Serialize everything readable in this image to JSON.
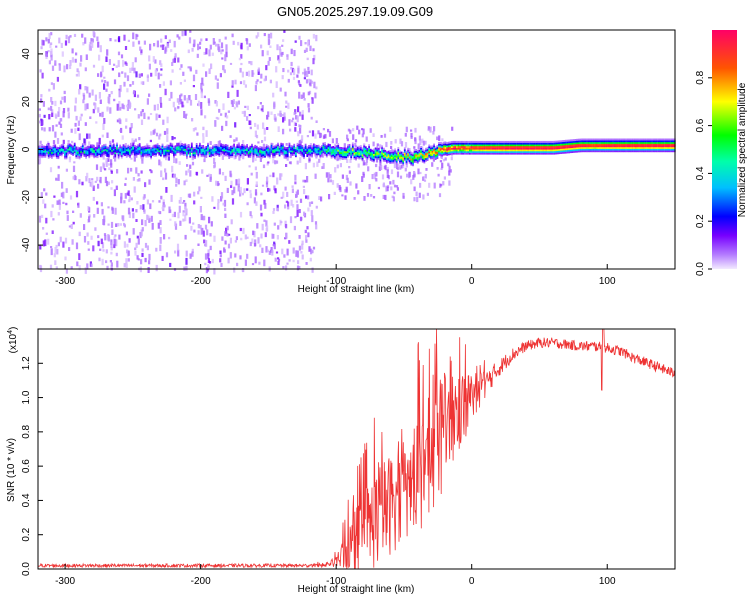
{
  "chart_data": [
    {
      "type": "heatmap",
      "title": "GN05.2025.297.19.09.G09",
      "xlabel": "Height of straight line (km)",
      "ylabel": "Frequency (Hz)",
      "xlim": [
        -320,
        150
      ],
      "ylim": [
        -50,
        50
      ],
      "xticks": [
        -300,
        -200,
        -100,
        0,
        100
      ],
      "yticks": [
        -40,
        -20,
        0,
        20,
        40
      ],
      "colorbar": {
        "label": "Normalized spectral amplitude",
        "range": [
          0,
          1
        ],
        "ticks": [
          "0.0",
          "0.2",
          "0.4",
          "0.6",
          "0.8"
        ]
      },
      "description_points": {
        "height_km": [
          -320,
          -115,
          -100,
          -80,
          -60,
          -45,
          -30,
          -15,
          0,
          20,
          40,
          60,
          80,
          90,
          100,
          150
        ],
        "peak_frequency_hz": [
          0,
          0,
          0,
          -1,
          -2,
          -3,
          -1,
          1,
          1,
          1,
          1,
          1,
          2,
          2,
          2,
          2
        ],
        "peak_amplitude": [
          0.3,
          0.3,
          0.45,
          0.5,
          0.55,
          0.6,
          0.75,
          0.85,
          0.9,
          0.95,
          0.95,
          0.95,
          0.95,
          0.9,
          0.95,
          0.95
        ]
      }
    },
    {
      "type": "line",
      "xlabel": "Height of straight line (km)",
      "ylabel": "SNR (10 * v/v)",
      "scale_label": "(x10",
      "scale_exponent": "4",
      "xlim": [
        -320,
        150
      ],
      "ylim": [
        0,
        1.4
      ],
      "xticks": [
        -300,
        -200,
        -100,
        0,
        100
      ],
      "yticks": [
        "0.0",
        "0.2",
        "0.4",
        "0.6",
        "0.8",
        "1.0",
        "1.2"
      ],
      "series": [
        {
          "color": "#ee3333",
          "x": [
            -320,
            -280,
            -240,
            -200,
            -160,
            -150,
            -130,
            -110,
            -100,
            -90,
            -80,
            -70,
            -60,
            -50,
            -40,
            -30,
            -20,
            -10,
            0,
            10,
            20,
            30,
            40,
            50,
            60,
            70,
            80,
            90,
            100,
            110,
            120,
            130,
            140,
            150
          ],
          "y": [
            0.02,
            0.02,
            0.02,
            0.02,
            0.02,
            0.02,
            0.02,
            0.02,
            0.04,
            0.12,
            0.22,
            0.3,
            0.38,
            0.45,
            0.55,
            0.68,
            0.8,
            0.92,
            1.0,
            1.08,
            1.17,
            1.25,
            1.3,
            1.32,
            1.32,
            1.31,
            1.3,
            1.3,
            1.29,
            1.27,
            1.23,
            1.2,
            1.17,
            1.14
          ],
          "noise_amplitude": [
            0.01,
            0.01,
            0.01,
            0.01,
            0.01,
            0.01,
            0.01,
            0.01,
            0.03,
            0.15,
            0.25,
            0.3,
            0.3,
            0.3,
            0.35,
            0.35,
            0.35,
            0.25,
            0.15,
            0.08,
            0.05,
            0.04,
            0.03,
            0.03,
            0.03,
            0.03,
            0.03,
            0.03,
            0.03,
            0.03,
            0.03,
            0.03,
            0.03,
            0.03
          ]
        }
      ]
    }
  ]
}
